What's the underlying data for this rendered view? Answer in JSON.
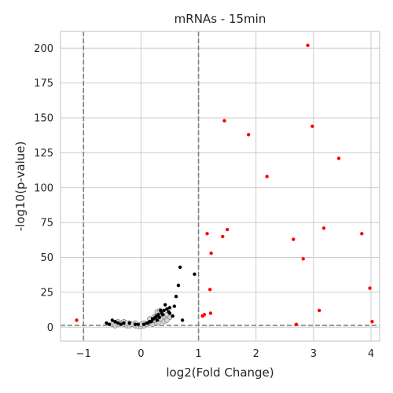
{
  "chart_data": {
    "type": "scatter",
    "title": "mRNAs - 15min",
    "xlabel": "log2(Fold Change)",
    "ylabel": "-log10(p-value)",
    "xlim": [
      -1.4,
      4.15
    ],
    "ylim": [
      -10,
      212
    ],
    "xticks": [
      -1,
      0,
      1,
      2,
      3,
      4
    ],
    "yticks": [
      0,
      25,
      50,
      75,
      100,
      125,
      150,
      175,
      200
    ],
    "grid": true,
    "thresholds": {
      "vertical": [
        -1,
        1
      ],
      "horizontal": 1.3
    },
    "colors": {
      "significant": "#ff0000",
      "nonsignificant": "#000000",
      "dense_cluster": "#d3d3d3",
      "threshold": "#808080",
      "grid": "#cccccc"
    },
    "series": [
      {
        "category": "significant",
        "x": [
          2.9,
          2.98,
          1.45,
          1.87,
          3.44,
          2.19,
          1.5,
          1.15,
          1.42,
          3.18,
          3.84,
          2.65,
          1.22,
          2.82,
          1.2,
          3.98,
          3.1,
          1.21,
          1.1,
          1.07,
          4.02,
          2.7,
          -1.12
        ],
        "y": [
          202,
          144,
          148,
          138,
          121,
          108,
          70,
          67,
          65,
          71,
          67,
          63,
          53,
          49,
          27,
          28,
          12,
          10,
          9,
          8,
          4,
          2,
          5
        ]
      },
      {
        "category": "nonsignificant",
        "x": [
          0.68,
          0.93,
          0.65,
          0.61,
          0.58,
          0.5,
          0.45,
          0.42,
          0.36,
          0.34,
          0.3,
          0.27,
          0.25,
          0.22,
          0.2,
          0.15,
          0.1,
          0.05,
          -0.05,
          -0.1,
          -0.2,
          -0.3,
          -0.35,
          -0.4,
          -0.45,
          -0.5,
          -0.55,
          -0.6,
          0.55,
          0.5,
          0.48,
          0.4,
          0.38,
          0.32,
          0.28,
          0.18,
          0.12,
          0.72
        ],
        "y": [
          43,
          38,
          30,
          22,
          15,
          14,
          13,
          16,
          10,
          12,
          9,
          8,
          7,
          6,
          6,
          4,
          3,
          2,
          2,
          2,
          3,
          3,
          2,
          3,
          4,
          5,
          2,
          3,
          8,
          10,
          11,
          12,
          9,
          7,
          5,
          4,
          3,
          5
        ]
      },
      {
        "category": "dense_cluster",
        "x": [
          -0.5,
          -0.45,
          -0.4,
          -0.35,
          -0.3,
          -0.25,
          -0.2,
          -0.15,
          -0.1,
          -0.05,
          0.0,
          0.05,
          0.1,
          0.15,
          0.2,
          0.25,
          0.3,
          0.35,
          0.4,
          0.45,
          0.5,
          -0.4,
          -0.3,
          -0.2,
          -0.1,
          0.0,
          0.1,
          0.2,
          0.3,
          0.4,
          0.15,
          0.25,
          0.35,
          0.05,
          -0.25,
          -0.15,
          0.45,
          0.28,
          0.33,
          0.22
        ],
        "y": [
          2,
          1,
          2,
          3,
          2,
          1,
          1,
          2,
          1,
          0.5,
          0.5,
          1,
          2,
          3,
          4,
          5,
          6,
          6,
          8,
          9,
          7,
          4,
          4,
          3,
          3,
          2,
          2,
          2,
          3,
          4,
          6,
          8,
          10,
          3,
          3,
          2,
          5,
          11,
          12,
          7
        ]
      }
    ]
  }
}
